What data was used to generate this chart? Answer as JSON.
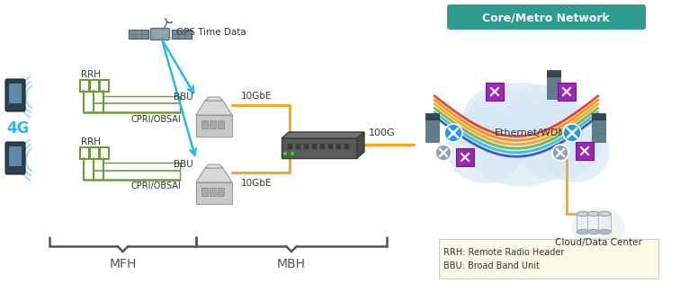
{
  "title": "Core/Metro Network",
  "title_bg": "#2E9B8F",
  "title_fg": "#ffffff",
  "label_4g": "4G",
  "label_gps": "GPS Time Data",
  "label_rrh": "RRH",
  "label_bbu": "BBU",
  "label_cpri1": "CPRI/OBSAI",
  "label_cpri2": "CPRI/OBSAI",
  "label_10gbe1": "10GbE",
  "label_10gbe2": "10GbE",
  "label_100g": "100G",
  "label_eth": "Ethernet/WDM",
  "label_cloud": "Cloud/Data Center",
  "label_mfh": "MFH",
  "label_mbh": "MBH",
  "legend_rrh": "RRH: Remote Radio Header",
  "legend_bbu": "BBU: Broad Band Unit",
  "legend_bg": "#FEFAE8",
  "bg_color": "#ffffff",
  "color_green": "#6B9B37",
  "color_blue_arrow": "#29B6F6",
  "color_yellow": "#F5A623",
  "color_gray": "#808080",
  "color_dark": "#37474F",
  "color_teal": "#2E9B8F",
  "color_red": "#E53935",
  "color_purple": "#9C27B0",
  "color_blue_node": "#2196F3",
  "color_cloud_fill": "#D6E8F5",
  "wdm_colors": [
    "#E53935",
    "#FF8F00",
    "#F5A623",
    "#7CB342",
    "#26C6DA",
    "#3F51B5"
  ]
}
